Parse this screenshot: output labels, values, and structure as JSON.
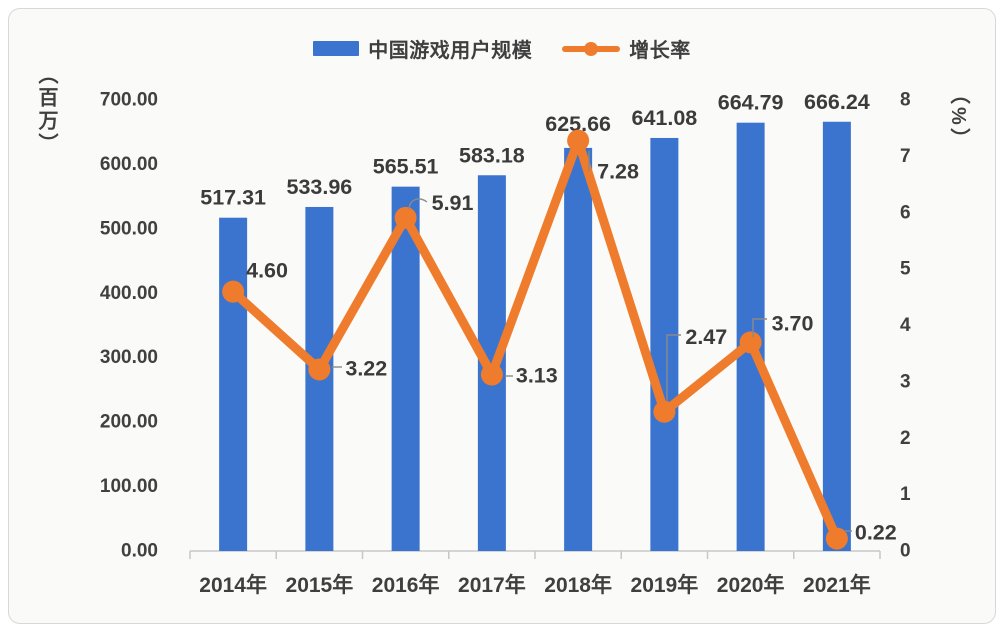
{
  "chart_data": {
    "type": "bar+line",
    "title": "",
    "categories": [
      "2014年",
      "2015年",
      "2016年",
      "2017年",
      "2018年",
      "2019年",
      "2020年",
      "2021年"
    ],
    "series": [
      {
        "name": "中国游戏用户规模",
        "type": "bar",
        "y_axis": "left",
        "color": "#3b74ce",
        "values": [
          517.31,
          533.96,
          565.51,
          583.18,
          625.66,
          641.08,
          664.79,
          666.24
        ],
        "data_labels": [
          "517.31",
          "533.96",
          "565.51",
          "583.18",
          "625.66",
          "641.08",
          "664.79",
          "666.24"
        ]
      },
      {
        "name": "增长率",
        "type": "line",
        "y_axis": "right",
        "color": "#ee7c2c",
        "values": [
          4.6,
          3.22,
          5.91,
          3.13,
          7.28,
          2.47,
          3.7,
          0.22
        ],
        "data_labels": [
          "4.60",
          "3.22",
          "5.91",
          "3.13",
          "7.28",
          "2.47",
          "3.70",
          "0.22"
        ]
      }
    ],
    "ylabel_left": "（百万）",
    "ylabel_right": "（%）",
    "ylim_left": [
      0,
      700
    ],
    "ylim_right": [
      0,
      8
    ],
    "yticks_left": [
      "700.00",
      "600.00",
      "500.00",
      "400.00",
      "300.00",
      "200.00",
      "100.00",
      "0.00"
    ],
    "yticks_right": [
      "8",
      "7",
      "6",
      "5",
      "4",
      "3",
      "2",
      "1",
      "0"
    ],
    "grid": false,
    "legend_position": "top",
    "text_color": "#3b3b3b",
    "axis_line_color": "#c7c7c7",
    "leader_line_color": "#8a8a8a"
  }
}
